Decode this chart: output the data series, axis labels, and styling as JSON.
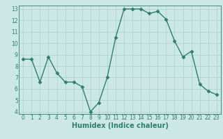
{
  "x": [
    0,
    1,
    2,
    3,
    4,
    5,
    6,
    7,
    8,
    9,
    10,
    11,
    12,
    13,
    14,
    15,
    16,
    17,
    18,
    19,
    20,
    21,
    22,
    23
  ],
  "y": [
    8.6,
    8.6,
    6.6,
    8.8,
    7.4,
    6.6,
    6.6,
    6.2,
    4.0,
    4.8,
    7.0,
    10.5,
    13.0,
    13.0,
    13.0,
    12.6,
    12.8,
    12.1,
    10.2,
    8.8,
    9.3,
    6.4,
    5.8,
    5.5
  ],
  "line_color": "#2e7d6e",
  "marker": "D",
  "marker_size": 2.5,
  "bg_color": "#cce8e4",
  "grid_color": "#aacfca",
  "xlabel": "Humidex (Indice chaleur)",
  "ylim_min": 3.8,
  "ylim_max": 13.3,
  "xlim_min": -0.5,
  "xlim_max": 23.5,
  "yticks": [
    4,
    5,
    6,
    7,
    8,
    9,
    10,
    11,
    12,
    13
  ],
  "xticks": [
    0,
    1,
    2,
    3,
    4,
    5,
    6,
    7,
    8,
    9,
    10,
    11,
    12,
    13,
    14,
    15,
    16,
    17,
    18,
    19,
    20,
    21,
    22,
    23
  ],
  "tick_label_fontsize": 5.5,
  "xlabel_fontsize": 7.0,
  "line_width": 1.0
}
